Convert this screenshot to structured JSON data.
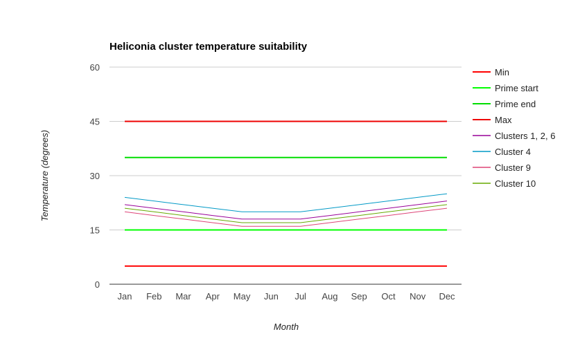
{
  "chart_data": {
    "type": "line",
    "title": "Heliconia cluster temperature suitability",
    "xlabel": "Month",
    "ylabel": "Temperature (degrees)",
    "categories": [
      "Jan",
      "Feb",
      "Mar",
      "Apr",
      "May",
      "Jun",
      "Jul",
      "Aug",
      "Sep",
      "Oct",
      "Nov",
      "Dec"
    ],
    "ylim": [
      0,
      60
    ],
    "yticks": [
      "0",
      "15",
      "30",
      "45",
      "60"
    ],
    "grid": true,
    "legend_position": "right",
    "series": [
      {
        "name": "Min",
        "color": "#ff0000",
        "width": 2,
        "values": [
          5,
          5,
          5,
          5,
          5,
          5,
          5,
          5,
          5,
          5,
          5,
          5
        ]
      },
      {
        "name": "Prime start",
        "color": "#00ff00",
        "width": 2,
        "values": [
          15,
          15,
          15,
          15,
          15,
          15,
          15,
          15,
          15,
          15,
          15,
          15
        ]
      },
      {
        "name": "Prime end",
        "color": "#00dd00",
        "width": 2,
        "values": [
          35,
          35,
          35,
          35,
          35,
          35,
          35,
          35,
          35,
          35,
          35,
          35
        ]
      },
      {
        "name": "Max",
        "color": "#ee0000",
        "width": 2,
        "values": [
          45,
          45,
          45,
          45,
          45,
          45,
          45,
          45,
          45,
          45,
          45,
          45
        ]
      },
      {
        "name": "Clusters 1, 2, 6",
        "color": "#990099",
        "width": 1,
        "values": [
          22,
          21,
          20,
          19,
          18,
          18,
          18,
          19,
          20,
          21,
          22,
          23
        ]
      },
      {
        "name": "Cluster 4",
        "color": "#0099c6",
        "width": 1,
        "values": [
          24,
          23,
          22,
          21,
          20,
          20,
          20,
          21,
          22,
          23,
          24,
          25
        ]
      },
      {
        "name": "Cluster 9",
        "color": "#dd4477",
        "width": 1,
        "values": [
          20,
          19,
          18,
          17,
          16,
          16,
          16,
          17,
          18,
          19,
          20,
          21
        ]
      },
      {
        "name": "Cluster 10",
        "color": "#66aa00",
        "width": 1,
        "values": [
          21,
          20,
          19,
          18,
          17,
          17,
          17,
          18,
          19,
          20,
          21,
          22
        ]
      }
    ]
  }
}
